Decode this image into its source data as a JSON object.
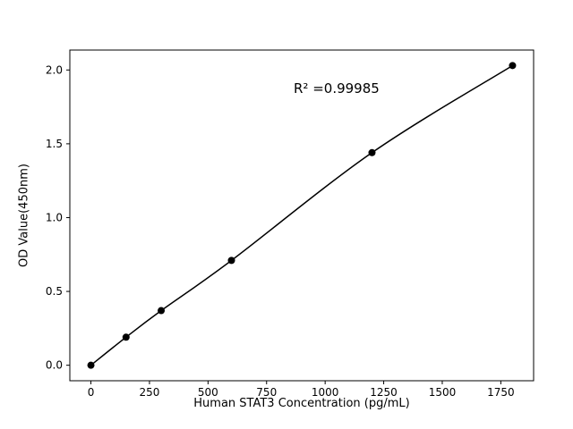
{
  "chart_data": {
    "type": "scatter",
    "subtype": "scatter-with-fitted-line",
    "x": [
      0,
      150,
      300,
      600,
      1200,
      1800
    ],
    "y": [
      0.0,
      0.19,
      0.37,
      0.71,
      1.44,
      2.03
    ],
    "title": "",
    "xlabel": "Human STAT3 Concentration (pg/mL)",
    "ylabel": "OD Value(450nm)",
    "annotation": "R² =0.99985",
    "xtick_labels": [
      "0",
      "250",
      "500",
      "750",
      "1000",
      "1250",
      "1500",
      "1750"
    ],
    "ytick_labels": [
      "0.0",
      "0.5",
      "1.0",
      "1.5",
      "2.0"
    ],
    "xlim": [
      -90,
      1890
    ],
    "ylim": [
      -0.105,
      2.135
    ],
    "grid": false,
    "legend": null,
    "line_color": "#000000",
    "marker_color": "#000000",
    "background_color": "#ffffff"
  }
}
